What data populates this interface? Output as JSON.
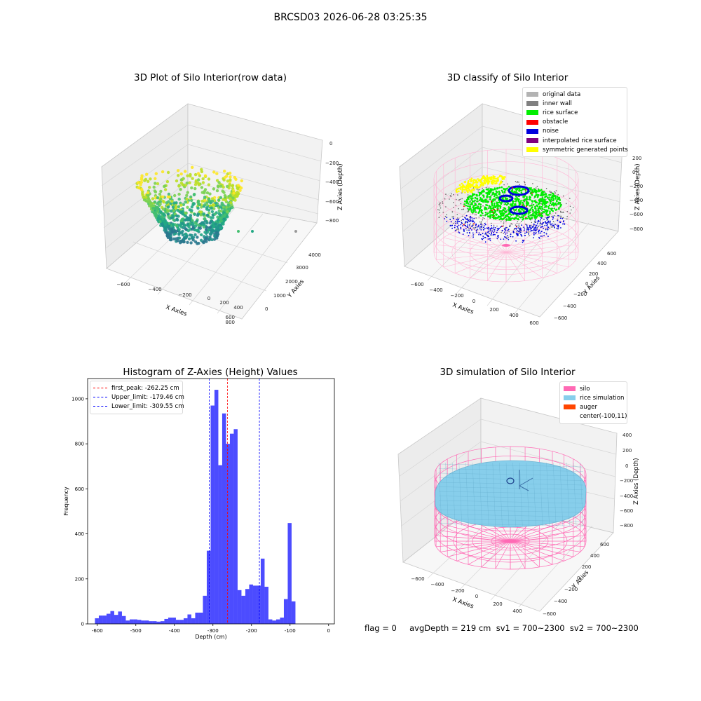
{
  "figure": {
    "title": "BRCSD03 2026-06-28 03:25:35",
    "status": "flag = 0     avgDepth = 219 cm  sv1 = 700~2300  sv2 = 700~2300"
  },
  "panel1": {
    "title": "3D Plot of Silo Interior(row data)",
    "xlabel": "X Axies",
    "ylabel": "Y Axies",
    "zlabel": "Z Axies (Depth)",
    "xticks": [
      "−600",
      "−400",
      "−200",
      "0",
      "200",
      "400",
      "600",
      "800"
    ],
    "yticks": [
      "0",
      "1000",
      "2000",
      "3000",
      "4000"
    ],
    "zticks": [
      "0",
      "−200",
      "−400",
      "−600",
      "−800"
    ]
  },
  "panel2": {
    "title": "3D classify of Silo Interior",
    "xlabel": "X Axies",
    "ylabel": "Y Axies",
    "zlabel": "Z Axies (Depth)",
    "xticks": [
      "−600",
      "−400",
      "−200",
      "0",
      "200",
      "400",
      "600"
    ],
    "yticks": [
      "−600",
      "−400",
      "−200",
      "0",
      "200",
      "400",
      "600"
    ],
    "zticks": [
      "200",
      "0",
      "−200",
      "−400",
      "−600",
      "−800"
    ],
    "legend": [
      {
        "label": "original data",
        "color": "#b3b3b3"
      },
      {
        "label": "inner wall",
        "color": "#808080"
      },
      {
        "label": "rice surface",
        "color": "#00ee00"
      },
      {
        "label": "obstacle",
        "color": "#ff0000"
      },
      {
        "label": "noise",
        "color": "#0000dd"
      },
      {
        "label": "interpolated rice surface",
        "color": "#800080"
      },
      {
        "label": "symmetric generated points",
        "color": "#ffff00"
      }
    ]
  },
  "panel3": {
    "title": "Histogram of Z-Axies (Height) Values",
    "legend": [
      {
        "label": "first_peak: -262.25 cm",
        "color": "#ff0000"
      },
      {
        "label": "Upper_limit: -179.46 cm",
        "color": "#0000ff"
      },
      {
        "label": "Lower_limit: -309.55 cm",
        "color": "#0000ff"
      }
    ]
  },
  "panel4": {
    "title": "3D simulation of Silo Interior",
    "xlabel": "X Axies",
    "ylabel": "Y Axies",
    "zlabel": "Z Axies (Depth)",
    "xticks": [
      "−600",
      "−400",
      "−200",
      "0",
      "200",
      "400"
    ],
    "yticks": [
      "−600",
      "−400",
      "−200",
      "0",
      "200",
      "400",
      "600"
    ],
    "zticks": [
      "400",
      "200",
      "0",
      "−200",
      "−400",
      "−600",
      "−800"
    ],
    "legend": [
      {
        "label": "silo",
        "color": "#ff69b4"
      },
      {
        "label": "rice simulation",
        "color": "#87ceeb"
      },
      {
        "label": "auger",
        "color": "#ff4500"
      },
      {
        "label": "center(-100,11)",
        "color": ""
      }
    ]
  },
  "chart_data": {
    "type": "bar",
    "title": "Histogram of Z-Axies (Height) Values",
    "xlabel": "Depth (cm)",
    "ylabel": "Frequency",
    "xlim": [
      -625,
      15
    ],
    "ylim": [
      0,
      1090
    ],
    "xticks": [
      -600,
      -500,
      -400,
      -300,
      -200,
      -100,
      0
    ],
    "yticks": [
      0,
      200,
      400,
      600,
      800,
      1000
    ],
    "bar_color": "#0000ff",
    "bins": [
      {
        "x0": -606,
        "x1": -596,
        "value": 25
      },
      {
        "x0": -596,
        "x1": -586,
        "value": 37
      },
      {
        "x0": -586,
        "x1": -576,
        "value": 37
      },
      {
        "x0": -576,
        "x1": -566,
        "value": 45
      },
      {
        "x0": -566,
        "x1": -556,
        "value": 57
      },
      {
        "x0": -556,
        "x1": -546,
        "value": 40
      },
      {
        "x0": -546,
        "x1": -536,
        "value": 55
      },
      {
        "x0": -536,
        "x1": -526,
        "value": 35
      },
      {
        "x0": -526,
        "x1": -516,
        "value": 15
      },
      {
        "x0": -516,
        "x1": -506,
        "value": 20
      },
      {
        "x0": -506,
        "x1": -496,
        "value": 20
      },
      {
        "x0": -496,
        "x1": -486,
        "value": 18
      },
      {
        "x0": -486,
        "x1": -476,
        "value": 15
      },
      {
        "x0": -476,
        "x1": -466,
        "value": 15
      },
      {
        "x0": -466,
        "x1": -456,
        "value": 12
      },
      {
        "x0": -456,
        "x1": -446,
        "value": 12
      },
      {
        "x0": -446,
        "x1": -436,
        "value": 10
      },
      {
        "x0": -436,
        "x1": -426,
        "value": 12
      },
      {
        "x0": -426,
        "x1": -416,
        "value": 22
      },
      {
        "x0": -416,
        "x1": -406,
        "value": 28
      },
      {
        "x0": -406,
        "x1": -396,
        "value": 28
      },
      {
        "x0": -396,
        "x1": -386,
        "value": 18
      },
      {
        "x0": -386,
        "x1": -376,
        "value": 18
      },
      {
        "x0": -376,
        "x1": -366,
        "value": 25
      },
      {
        "x0": -366,
        "x1": -356,
        "value": 42
      },
      {
        "x0": -356,
        "x1": -346,
        "value": 25
      },
      {
        "x0": -346,
        "x1": -336,
        "value": 50
      },
      {
        "x0": -336,
        "x1": -326,
        "value": 50
      },
      {
        "x0": -326,
        "x1": -316,
        "value": 125
      },
      {
        "x0": -316,
        "x1": -306,
        "value": 325
      },
      {
        "x0": -306,
        "x1": -296,
        "value": 970
      },
      {
        "x0": -296,
        "x1": -286,
        "value": 1040
      },
      {
        "x0": -286,
        "x1": -276,
        "value": 705
      },
      {
        "x0": -276,
        "x1": -266,
        "value": 935
      },
      {
        "x0": -266,
        "x1": -256,
        "value": 800
      },
      {
        "x0": -256,
        "x1": -246,
        "value": 845
      },
      {
        "x0": -246,
        "x1": -236,
        "value": 865
      },
      {
        "x0": -236,
        "x1": -226,
        "value": 150
      },
      {
        "x0": -226,
        "x1": -216,
        "value": 125
      },
      {
        "x0": -216,
        "x1": -206,
        "value": 155
      },
      {
        "x0": -206,
        "x1": -196,
        "value": 175
      },
      {
        "x0": -196,
        "x1": -186,
        "value": 170
      },
      {
        "x0": -186,
        "x1": -176,
        "value": 170
      },
      {
        "x0": -176,
        "x1": -166,
        "value": 290
      },
      {
        "x0": -166,
        "x1": -156,
        "value": 165
      },
      {
        "x0": -156,
        "x1": -146,
        "value": 20
      },
      {
        "x0": -146,
        "x1": -136,
        "value": 15
      },
      {
        "x0": -136,
        "x1": -126,
        "value": 20
      },
      {
        "x0": -126,
        "x1": -116,
        "value": 28
      },
      {
        "x0": -116,
        "x1": -106,
        "value": 110
      },
      {
        "x0": -106,
        "x1": -96,
        "value": 448
      },
      {
        "x0": -96,
        "x1": -86,
        "value": 100
      }
    ],
    "vlines": [
      {
        "x": -262.25,
        "color": "#ff0000"
      },
      {
        "x": -179.46,
        "color": "#0000ff"
      },
      {
        "x": -309.55,
        "color": "#0000ff"
      }
    ]
  }
}
